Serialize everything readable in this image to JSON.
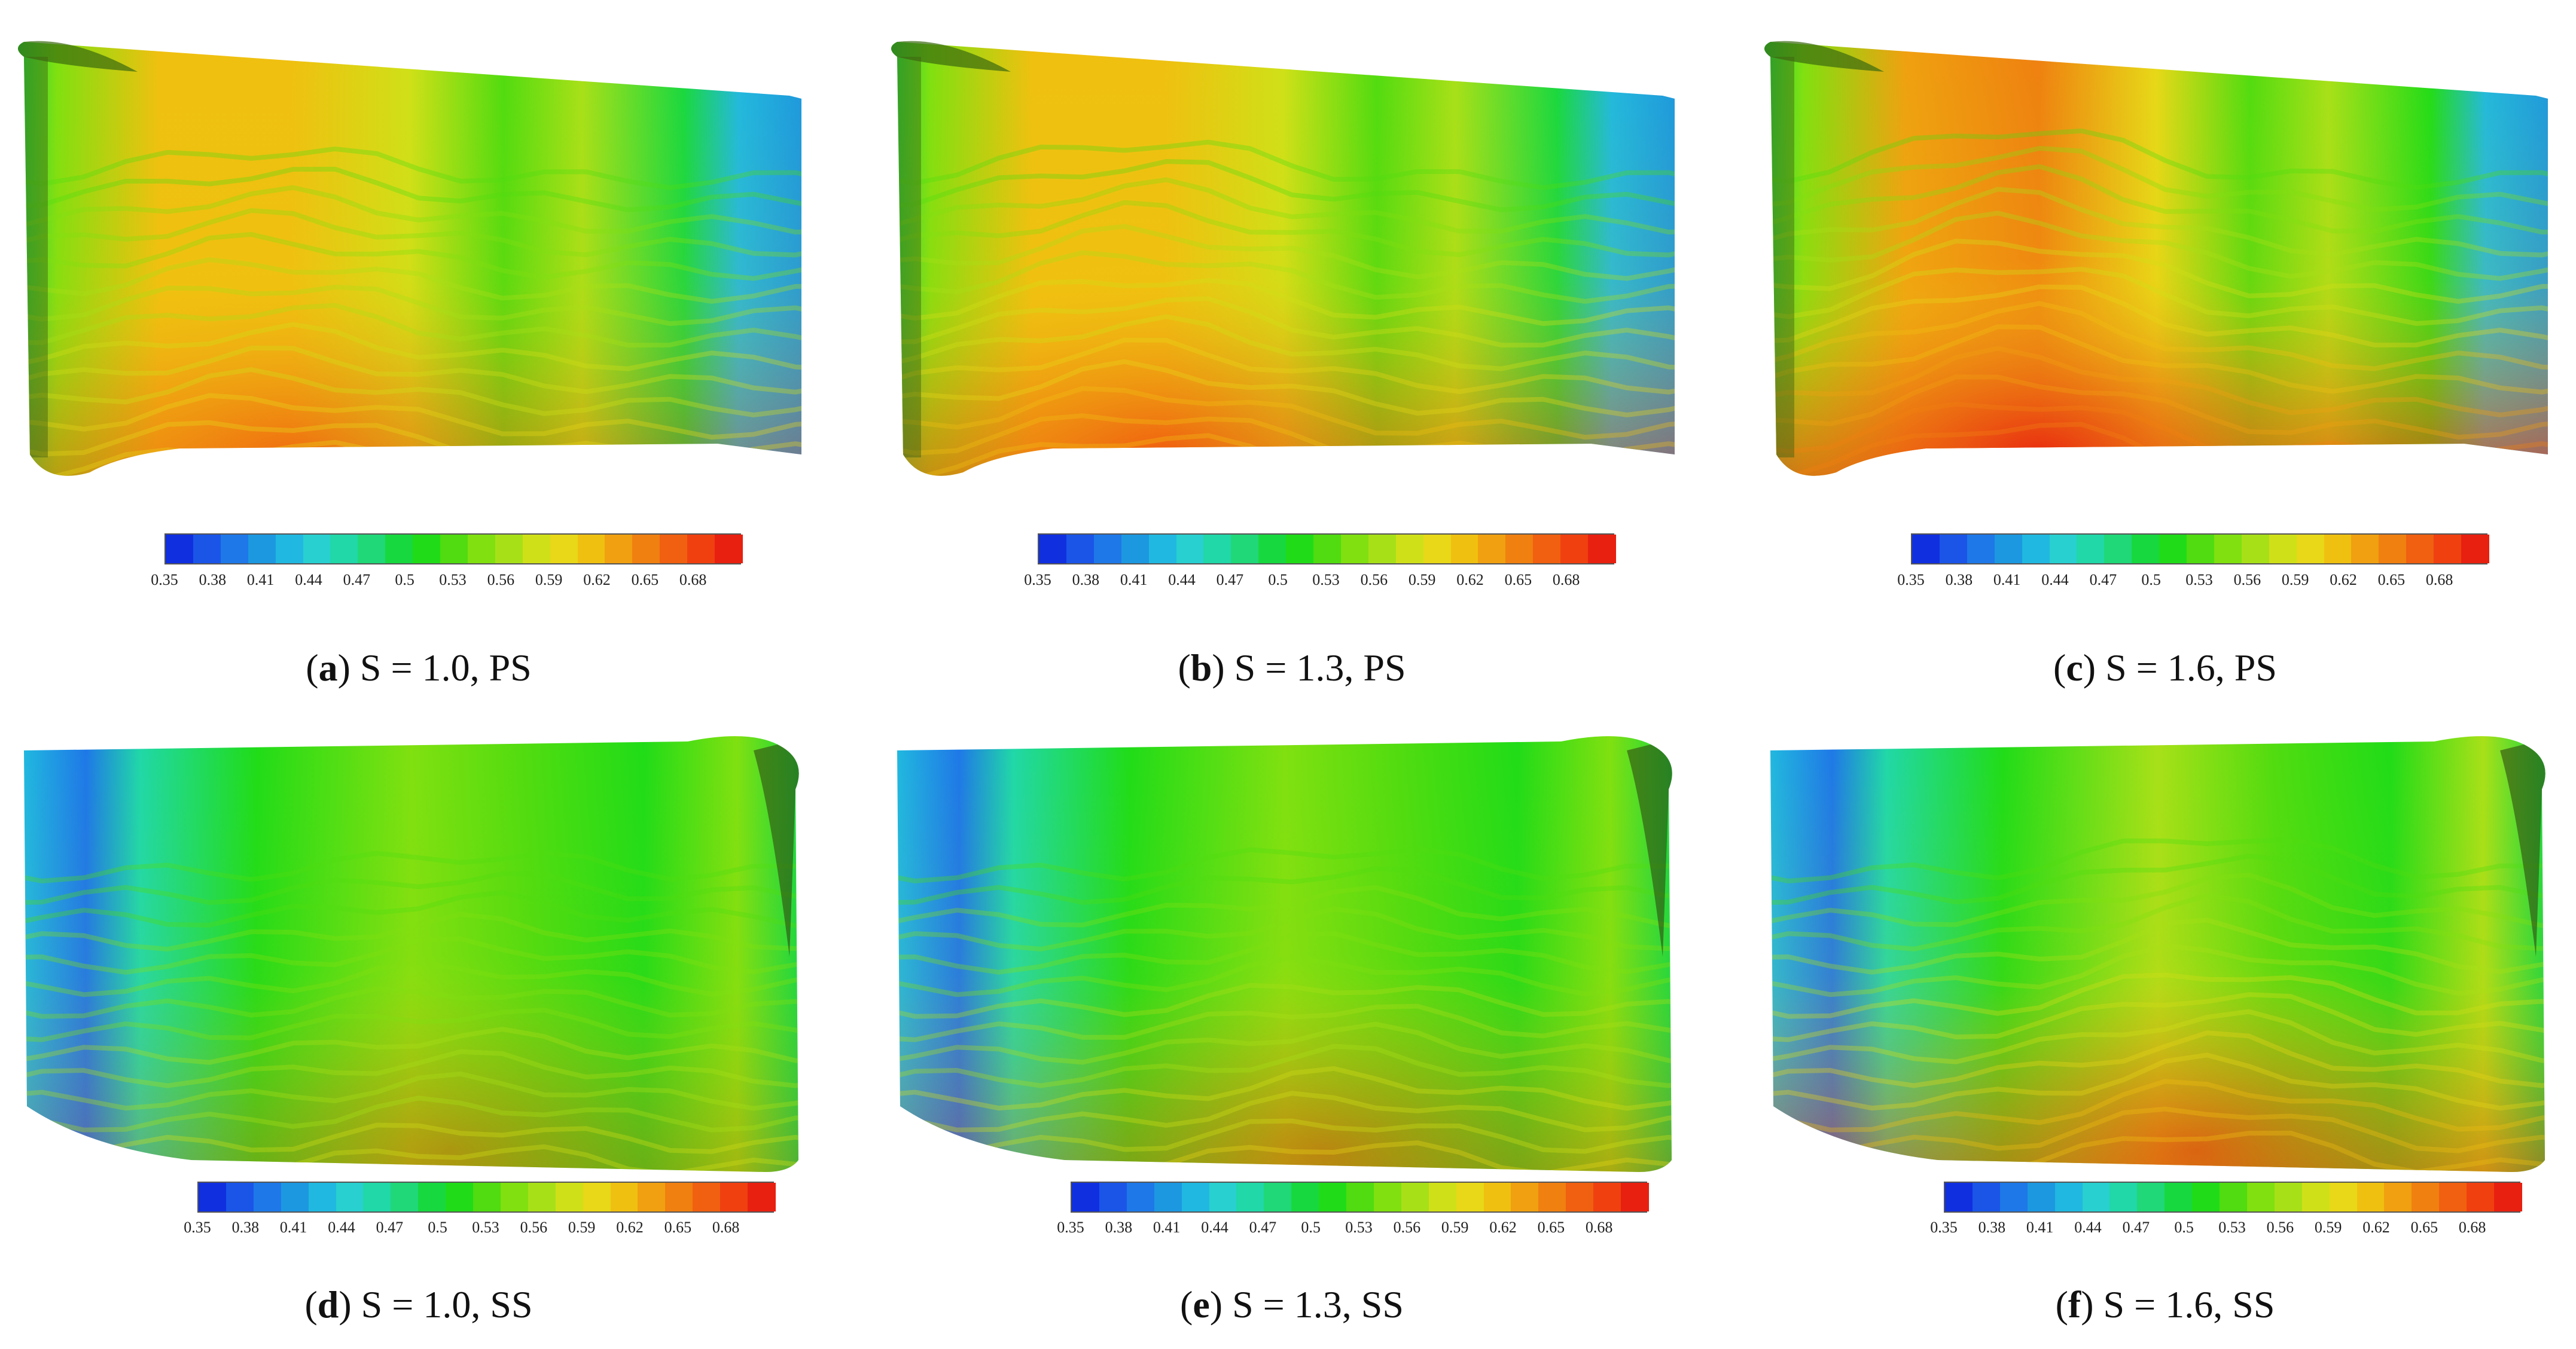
{
  "colormap": [
    "#1030e0",
    "#1a55e8",
    "#1e78e8",
    "#1c98e0",
    "#20b8e0",
    "#28d0d0",
    "#20d8a8",
    "#20d878",
    "#18d840",
    "#20dc18",
    "#50dc10",
    "#80e010",
    "#a8e018",
    "#d0e018",
    "#e8d818",
    "#f0c010",
    "#f0a010",
    "#f08010",
    "#f06010",
    "#f04010",
    "#e82010"
  ],
  "colorbar_ticks": [
    "0.35",
    "0.38",
    "0.41",
    "0.44",
    "0.47",
    "0.5",
    "0.53",
    "0.56",
    "0.59",
    "0.62",
    "0.65",
    "0.68"
  ],
  "panels": [
    {
      "id": "a",
      "letter": "a",
      "caption": " S = 1.0, PS",
      "side": "PS",
      "intensity": 0.55
    },
    {
      "id": "b",
      "letter": "b",
      "caption": " S = 1.3, PS",
      "side": "PS",
      "intensity": 0.7
    },
    {
      "id": "c",
      "letter": "c",
      "caption": " S = 1.6, PS",
      "side": "PS",
      "intensity": 0.95
    },
    {
      "id": "d",
      "letter": "d",
      "caption": " S = 1.0, SS",
      "side": "SS",
      "intensity": 0.35
    },
    {
      "id": "e",
      "letter": "e",
      "caption": " S = 1.3, SS",
      "side": "SS",
      "intensity": 0.45
    },
    {
      "id": "f",
      "letter": "f",
      "caption": " S = 1.6, SS",
      "side": "SS",
      "intensity": 0.7
    }
  ]
}
